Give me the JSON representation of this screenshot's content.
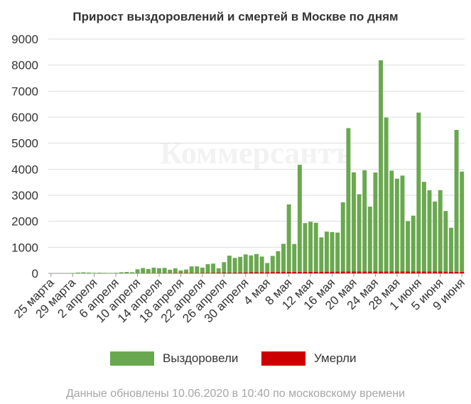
{
  "chart_data": {
    "type": "bar",
    "title": "Прирост выздоровлений и смертей в Москве по дням",
    "xlabel": "",
    "ylabel": "",
    "ylim": [
      0,
      9000
    ],
    "y_ticks": [
      0,
      1000,
      2000,
      3000,
      4000,
      5000,
      6000,
      7000,
      8000,
      9000
    ],
    "grid": true,
    "legend_position": "bottom",
    "stacked": true,
    "x_tick_labels": [
      "25 марта",
      "29 марта",
      "2 апреля",
      "6 апреля",
      "10 апреля",
      "14 апреля",
      "18 апреля",
      "22 апреля",
      "26 апреля",
      "30 апреля",
      "4 мая",
      "8 мая",
      "12 мая",
      "16 мая",
      "20 мая",
      "24 мая",
      "28 мая",
      "1 июня",
      "5 июня",
      "9 июня"
    ],
    "series": [
      {
        "name": "Выздоровели",
        "color": "#6aa84f",
        "values": [
          0,
          2,
          5,
          10,
          15,
          30,
          40,
          30,
          20,
          25,
          20,
          15,
          20,
          40,
          50,
          40,
          150,
          200,
          160,
          210,
          190,
          200,
          130,
          180,
          100,
          130,
          250,
          250,
          200,
          330,
          350,
          170,
          400,
          650,
          560,
          600,
          690,
          650,
          700,
          600,
          350,
          620,
          800,
          1080,
          2590,
          1070,
          4110,
          1870,
          1920,
          1880,
          1320,
          1540,
          1520,
          1500,
          2660,
          5510,
          3810,
          2970,
          3890,
          2490,
          3800,
          8110,
          5910,
          3870,
          3560,
          3680,
          1930,
          2140,
          6100,
          3440,
          3120,
          2690,
          3130,
          2330,
          1690,
          5450,
          3850
        ]
      },
      {
        "name": "Умерли",
        "color": "#cc0000",
        "values": [
          0,
          0,
          0,
          0,
          0,
          0,
          0,
          0,
          0,
          0,
          0,
          1,
          1,
          2,
          3,
          3,
          5,
          5,
          6,
          7,
          8,
          9,
          10,
          12,
          13,
          15,
          16,
          18,
          20,
          22,
          24,
          25,
          28,
          30,
          32,
          35,
          37,
          40,
          42,
          45,
          48,
          50,
          52,
          55,
          57,
          58,
          60,
          60,
          62,
          62,
          63,
          64,
          65,
          66,
          67,
          68,
          69,
          70,
          71,
          72,
          73,
          74,
          75,
          75,
          76,
          76,
          76,
          76,
          75,
          74,
          72,
          70,
          68,
          65,
          62,
          60,
          58
        ]
      }
    ]
  },
  "legend": {
    "recovered": "Выздоровели",
    "deaths": "Умерли"
  },
  "footer": "Данные обновлены 10.06.2020 в 10:40 по московскому времени"
}
